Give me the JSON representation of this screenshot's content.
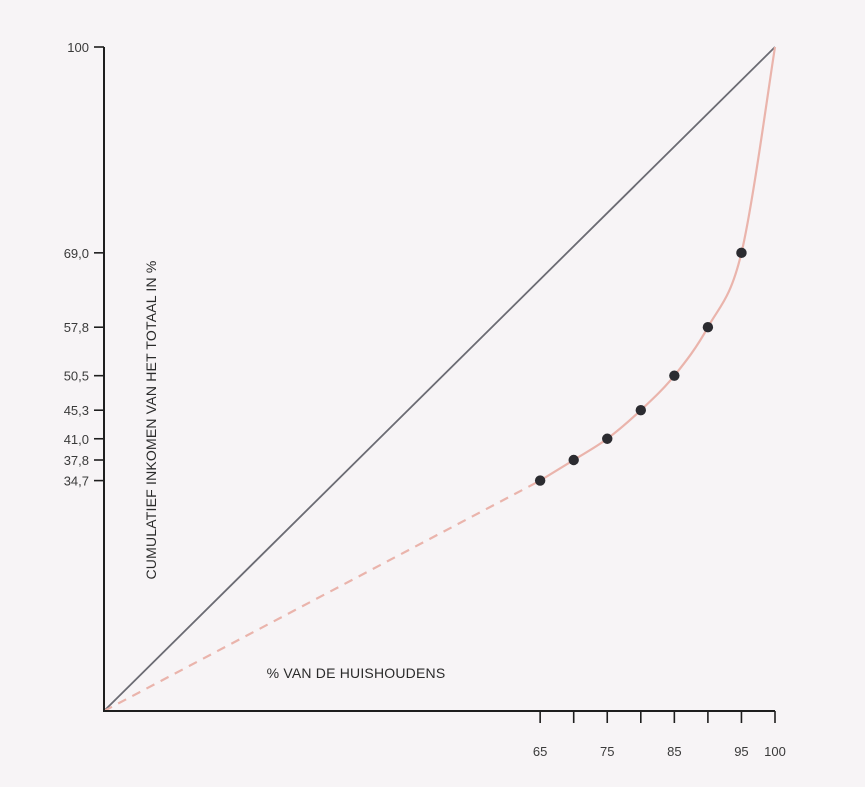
{
  "chart_data": {
    "type": "line",
    "title": "",
    "xlabel": "% VAN DE HUISHOUDENS",
    "ylabel": "CUMULATIEF INKOMEN VAN HET TOTAAL IN %",
    "xlim": [
      0,
      100
    ],
    "ylim": [
      0,
      100
    ],
    "x_ticks": [
      {
        "value": 65,
        "label": "65"
      },
      {
        "value": 70,
        "label": ""
      },
      {
        "value": 75,
        "label": "75"
      },
      {
        "value": 80,
        "label": ""
      },
      {
        "value": 85,
        "label": "85"
      },
      {
        "value": 90,
        "label": ""
      },
      {
        "value": 95,
        "label": "95"
      },
      {
        "value": 100,
        "label": "100"
      }
    ],
    "y_ticks": [
      {
        "value": 34.7,
        "label": "34,7"
      },
      {
        "value": 37.8,
        "label": "37,8"
      },
      {
        "value": 41.0,
        "label": "41,0"
      },
      {
        "value": 45.3,
        "label": "45,3"
      },
      {
        "value": 50.5,
        "label": "50,5"
      },
      {
        "value": 57.8,
        "label": "57,8"
      },
      {
        "value": 69.0,
        "label": "69,0"
      },
      {
        "value": 100,
        "label": "100"
      }
    ],
    "series": [
      {
        "role": "equality-line",
        "color": "#6b6b73",
        "x": [
          0,
          100
        ],
        "y": [
          0,
          100
        ]
      },
      {
        "role": "lorenz-curve-estimated",
        "color": "#eab4ac",
        "dashed": true,
        "x": [
          0,
          65
        ],
        "y": [
          0,
          34.7
        ]
      },
      {
        "role": "lorenz-curve",
        "color": "#eab4ac",
        "x": [
          65,
          70,
          75,
          80,
          85,
          90,
          95,
          100
        ],
        "y": [
          34.7,
          37.8,
          41.0,
          45.3,
          50.5,
          57.8,
          69.0,
          100
        ]
      }
    ],
    "points": {
      "color": "#2b2b30",
      "x": [
        65,
        70,
        75,
        80,
        85,
        90,
        95
      ],
      "y": [
        34.7,
        37.8,
        41.0,
        45.3,
        50.5,
        57.8,
        69.0
      ]
    },
    "grid": false,
    "legend": "none"
  }
}
